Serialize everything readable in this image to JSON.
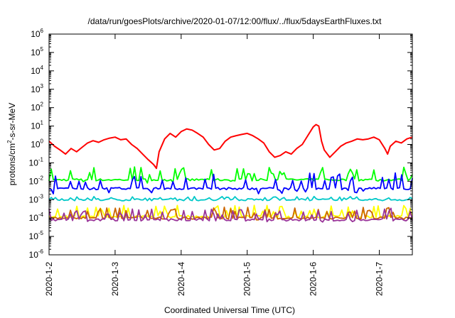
{
  "chart_data": {
    "type": "line",
    "title": "/data/run/goesPlots/archive/2020-01-07/12:00/flux/../flux/5daysEarthFluxes.txt",
    "xlabel": "Coordinated Universal Time (UTC)",
    "ylabel": "protons/cm²-s-sr-MeV",
    "ylabel_parts": {
      "pre": "protons/cm",
      "sup": "2",
      "post": "-s-sr-MeV"
    },
    "yscale": "log",
    "ylim": [
      1e-06,
      1000000.0
    ],
    "y_tick_labels": [
      {
        "base": "10",
        "exp": "-6"
      },
      {
        "base": "10",
        "exp": "-5"
      },
      {
        "base": "10",
        "exp": "-4"
      },
      {
        "base": "10",
        "exp": "-3"
      },
      {
        "base": "10",
        "exp": "-2"
      },
      {
        "base": "10",
        "exp": "-1"
      },
      {
        "base": "10",
        "exp": "0"
      },
      {
        "base": "10",
        "exp": "1"
      },
      {
        "base": "10",
        "exp": "2"
      },
      {
        "base": "10",
        "exp": "3"
      },
      {
        "base": "10",
        "exp": "4"
      },
      {
        "base": "10",
        "exp": "5"
      },
      {
        "base": "10",
        "exp": "6"
      }
    ],
    "xlim": [
      "2020-01-02T00:00",
      "2020-01-07T12:00"
    ],
    "x_tick_labels": [
      "2020-1-2",
      "2020-1-3",
      "2020-1-4",
      "2020-1-5",
      "2020-1-6",
      "2020-1-7"
    ],
    "grid": false,
    "series": [
      {
        "color": "#ff0000",
        "points": [
          [
            "2020-01-02T00:00",
            1.5
          ],
          [
            "2020-01-02T02:00",
            0.8
          ],
          [
            "2020-01-02T04:00",
            0.5
          ],
          [
            "2020-01-02T06:00",
            0.3
          ],
          [
            "2020-01-02T08:00",
            0.6
          ],
          [
            "2020-01-02T10:00",
            0.4
          ],
          [
            "2020-01-02T12:00",
            0.7
          ],
          [
            "2020-01-02T14:00",
            1.2
          ],
          [
            "2020-01-02T16:00",
            1.6
          ],
          [
            "2020-01-02T18:00",
            1.3
          ],
          [
            "2020-01-02T20:00",
            1.8
          ],
          [
            "2020-01-02T22:00",
            2.2
          ],
          [
            "2020-01-03T00:00",
            2.5
          ],
          [
            "2020-01-03T02:00",
            1.8
          ],
          [
            "2020-01-03T04:00",
            2.0
          ],
          [
            "2020-01-03T06:00",
            1.0
          ],
          [
            "2020-01-03T08:00",
            0.6
          ],
          [
            "2020-01-03T10:00",
            0.3
          ],
          [
            "2020-01-03T12:00",
            0.15
          ],
          [
            "2020-01-03T14:00",
            0.08
          ],
          [
            "2020-01-03T15:00",
            0.05
          ],
          [
            "2020-01-03T16:00",
            0.4
          ],
          [
            "2020-01-03T18:00",
            2.0
          ],
          [
            "2020-01-03T20:00",
            4.0
          ],
          [
            "2020-01-03T22:00",
            2.5
          ],
          [
            "2020-01-04T00:00",
            5.0
          ],
          [
            "2020-01-04T02:00",
            7.0
          ],
          [
            "2020-01-04T04:00",
            6.0
          ],
          [
            "2020-01-04T06:00",
            4.0
          ],
          [
            "2020-01-04T08:00",
            2.5
          ],
          [
            "2020-01-04T10:00",
            1.0
          ],
          [
            "2020-01-04T12:00",
            0.5
          ],
          [
            "2020-01-04T14:00",
            0.6
          ],
          [
            "2020-01-04T16:00",
            1.5
          ],
          [
            "2020-01-04T18:00",
            2.5
          ],
          [
            "2020-01-04T20:00",
            3.0
          ],
          [
            "2020-01-04T22:00",
            3.5
          ],
          [
            "2020-01-05T00:00",
            4.0
          ],
          [
            "2020-01-05T02:00",
            3.0
          ],
          [
            "2020-01-05T04:00",
            2.0
          ],
          [
            "2020-01-05T06:00",
            1.2
          ],
          [
            "2020-01-05T08:00",
            0.4
          ],
          [
            "2020-01-05T10:00",
            0.2
          ],
          [
            "2020-01-05T12:00",
            0.25
          ],
          [
            "2020-01-05T14:00",
            0.4
          ],
          [
            "2020-01-05T16:00",
            0.3
          ],
          [
            "2020-01-05T18:00",
            0.6
          ],
          [
            "2020-01-05T20:00",
            1.0
          ],
          [
            "2020-01-05T22:00",
            3.0
          ],
          [
            "2020-01-06T00:00",
            9.0
          ],
          [
            "2020-01-06T01:00",
            12.0
          ],
          [
            "2020-01-06T02:00",
            10.0
          ],
          [
            "2020-01-06T03:00",
            1.5
          ],
          [
            "2020-01-06T04:00",
            0.5
          ],
          [
            "2020-01-06T06:00",
            0.2
          ],
          [
            "2020-01-06T08:00",
            0.4
          ],
          [
            "2020-01-06T10:00",
            0.8
          ],
          [
            "2020-01-06T12:00",
            1.2
          ],
          [
            "2020-01-06T14:00",
            1.5
          ],
          [
            "2020-01-06T16:00",
            2.0
          ],
          [
            "2020-01-06T18:00",
            1.8
          ],
          [
            "2020-01-06T20:00",
            2.0
          ],
          [
            "2020-01-06T22:00",
            2.5
          ],
          [
            "2020-01-07T00:00",
            1.8
          ],
          [
            "2020-01-07T02:00",
            0.6
          ],
          [
            "2020-01-07T03:00",
            0.3
          ],
          [
            "2020-01-07T04:00",
            0.8
          ],
          [
            "2020-01-07T06:00",
            1.5
          ],
          [
            "2020-01-07T08:00",
            1.2
          ],
          [
            "2020-01-07T10:00",
            2.0
          ],
          [
            "2020-01-07T12:00",
            2.5
          ]
        ]
      },
      {
        "color": "#00ff00",
        "baseline": 0.012,
        "spike_max": 0.06,
        "trough_min": 0.008
      },
      {
        "color": "#0000ff",
        "baseline": 0.004,
        "spike_max": 0.03,
        "trough_min": 0.002
      },
      {
        "color": "#00c8c8",
        "baseline": 0.001,
        "spike_max": 0.0015,
        "trough_min": 0.0009
      },
      {
        "color": "#ffff00",
        "baseline": 0.00012,
        "spike_max": 0.0005,
        "trough_min": 9e-05
      },
      {
        "color": "#cc6600",
        "baseline": 0.0001,
        "spike_max": 0.0004,
        "trough_min": 8e-05
      },
      {
        "color": "#993399",
        "baseline": 8e-05,
        "spike_max": 0.00035,
        "trough_min": 6e-05
      }
    ]
  }
}
